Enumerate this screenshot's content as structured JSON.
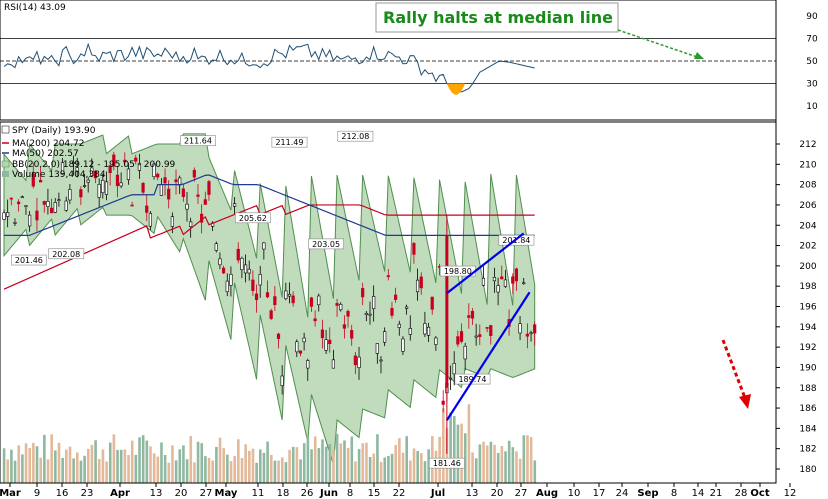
{
  "colors": {
    "up": "#000000",
    "down": "#c8001e",
    "band_fill": "#b5d6b0",
    "band_edge": "#4f8f4f",
    "ma200": "#c8001e",
    "ma50": "#1f3a93",
    "volume_up": "#8fb8a0",
    "volume_down": "#e3b99a",
    "channel": "#0000ee",
    "arrow": "#e00000",
    "annotation": "#1a8a1a",
    "rsi_line": "#1f4f73",
    "rsi_fill": "#ffa500"
  },
  "annotation": {
    "text": "Rally halts at median line"
  },
  "rsi_panel": {
    "label": "RSI(14) 43.09",
    "tick_labels": [
      "90",
      "70",
      "50",
      "30",
      "10"
    ]
  },
  "price_panel": {
    "legend": {
      "symbol": "SPY (Daily) 193.90",
      "ma200": "MA(200) 204.72",
      "ma50": "MA(50) 202.57",
      "bb": "BB(20,2.0) 189.12 - 195.05 - 200.99",
      "volume": "Volume 139,404,384"
    },
    "tick_labels": [
      "212",
      "210",
      "208",
      "206",
      "204",
      "202",
      "200",
      "198",
      "196",
      "194",
      "192",
      "190",
      "188",
      "186",
      "184",
      "182",
      "180"
    ]
  },
  "x_axis": {
    "labels": [
      {
        "t": "Mar",
        "month": true
      },
      {
        "t": "9"
      },
      {
        "t": "16"
      },
      {
        "t": "23"
      },
      {
        "t": "Apr",
        "month": true
      },
      {
        "t": "13"
      },
      {
        "t": "20"
      },
      {
        "t": "27"
      },
      {
        "t": "May",
        "month": true
      },
      {
        "t": "11"
      },
      {
        "t": "18"
      },
      {
        "t": "26"
      },
      {
        "t": "Jun",
        "month": true
      },
      {
        "t": "8"
      },
      {
        "t": "15"
      },
      {
        "t": "22"
      },
      {
        "t": "Jul",
        "month": true
      },
      {
        "t": "13"
      },
      {
        "t": "20"
      },
      {
        "t": "27"
      },
      {
        "t": "Aug",
        "month": true
      },
      {
        "t": "10"
      },
      {
        "t": "17"
      },
      {
        "t": "24"
      },
      {
        "t": "Sep",
        "month": true
      },
      {
        "t": "8"
      },
      {
        "t": "14"
      },
      {
        "t": "21"
      },
      {
        "t": "28"
      },
      {
        "t": "Oct",
        "month": true
      },
      {
        "t": "12"
      }
    ]
  },
  "chart_data": {
    "type": "candlestick",
    "symbol": "SPY",
    "price_range": [
      180,
      213
    ],
    "rsi_range": [
      0,
      100
    ],
    "rsi_guides": [
      70,
      50,
      30
    ],
    "price_labels": [
      {
        "v": "211.64",
        "date": "May 19",
        "pos": "above"
      },
      {
        "v": "211.49",
        "date": "Jun 23",
        "pos": "above"
      },
      {
        "v": "212.08",
        "date": "Jul 20",
        "pos": "above"
      },
      {
        "v": "201.46",
        "date": "Mar 11",
        "pos": "below"
      },
      {
        "v": "202.08",
        "date": "Mar 26",
        "pos": "below"
      },
      {
        "v": "205.62",
        "date": "Jun 9",
        "pos": "below"
      },
      {
        "v": "203.05",
        "date": "Jul 8",
        "pos": "below"
      },
      {
        "v": "198.80",
        "date": "Aug 27",
        "pos": "above"
      },
      {
        "v": "201.84",
        "date": "Sep 17",
        "pos": "above"
      },
      {
        "v": "189.74",
        "date": "Sep 1",
        "pos": "below"
      },
      {
        "v": "181.46",
        "date": "Aug 24",
        "pos": "below"
      }
    ],
    "channel_upper": [
      {
        "d": "Aug 24",
        "p": 197.3
      },
      {
        "d": "Sep 21",
        "p": 203.2
      }
    ],
    "channel_lower": [
      {
        "d": "Aug 24",
        "p": 184.8
      },
      {
        "d": "Sep 23",
        "p": 197.4
      }
    ],
    "bb_upper": [
      [
        211,
        208
      ],
      [
        212,
        209
      ],
      [
        212,
        212
      ],
      [
        212,
        213
      ],
      [
        211,
        213
      ],
      [
        211,
        212
      ],
      [
        212,
        212
      ],
      [
        213,
        213
      ],
      [
        211,
        205
      ],
      [
        210,
        200
      ],
      [
        209,
        196
      ],
      [
        209,
        194
      ],
      [
        210,
        196
      ],
      [
        210,
        198
      ],
      [
        210,
        199
      ],
      [
        210,
        199
      ],
      [
        210,
        198
      ],
      [
        210,
        197
      ],
      [
        210,
        196
      ],
      [
        211,
        196
      ],
      [
        211,
        196
      ]
    ],
    "bb_lower": [
      [
        201,
        204
      ],
      [
        202,
        205
      ],
      [
        203,
        206
      ],
      [
        204,
        206
      ],
      [
        205,
        205
      ],
      [
        205,
        203
      ],
      [
        205,
        201
      ],
      [
        203,
        196
      ],
      [
        201,
        192
      ],
      [
        199,
        188
      ],
      [
        196,
        184
      ],
      [
        193,
        182
      ],
      [
        188,
        180
      ],
      [
        185,
        183
      ],
      [
        186,
        185
      ],
      [
        188,
        186
      ],
      [
        189,
        187
      ],
      [
        190,
        188
      ],
      [
        190,
        189
      ],
      [
        190,
        189
      ],
      [
        189,
        190
      ]
    ],
    "ma200": [
      [
        197,
        198
      ],
      [
        198,
        199
      ],
      [
        199,
        200
      ],
      [
        200,
        201
      ],
      [
        201,
        202
      ],
      [
        202,
        203
      ],
      [
        203,
        204
      ],
      [
        203,
        205
      ],
      [
        204,
        205
      ],
      [
        205,
        206
      ],
      [
        205,
        206
      ],
      [
        205,
        206
      ],
      [
        206,
        206
      ],
      [
        206,
        206
      ],
      [
        206,
        205
      ],
      [
        205,
        205
      ],
      [
        205,
        205
      ],
      [
        205,
        205
      ],
      [
        205,
        205
      ],
      [
        205,
        205
      ],
      [
        205,
        205
      ]
    ],
    "ma50": [
      [
        203,
        203
      ],
      [
        203,
        204
      ],
      [
        204,
        205
      ],
      [
        205,
        206
      ],
      [
        206,
        207
      ],
      [
        207,
        207
      ],
      [
        208,
        208
      ],
      [
        208,
        209
      ],
      [
        209,
        208
      ],
      [
        208,
        208
      ],
      [
        208,
        207
      ],
      [
        207,
        206
      ],
      [
        206,
        205
      ],
      [
        205,
        204
      ],
      [
        204,
        203
      ],
      [
        203,
        203
      ],
      [
        203,
        203
      ],
      [
        203,
        203
      ],
      [
        203,
        203
      ],
      [
        203,
        203
      ],
      [
        203,
        203
      ]
    ],
    "rsi": [
      [
        50,
        52
      ],
      [
        48,
        55
      ],
      [
        45,
        58
      ],
      [
        50,
        60
      ],
      [
        52,
        55
      ],
      [
        55,
        56
      ],
      [
        58,
        55
      ],
      [
        55,
        58
      ],
      [
        52,
        57
      ],
      [
        50,
        55
      ],
      [
        55,
        52
      ],
      [
        50,
        52
      ],
      [
        48,
        58
      ],
      [
        56,
        60
      ],
      [
        60,
        54
      ],
      [
        55,
        50
      ],
      [
        50,
        55
      ],
      [
        58,
        56
      ],
      [
        55,
        52
      ],
      [
        52,
        40
      ],
      [
        40,
        28
      ]
    ],
    "rsi_tail": [
      [
        28,
        22
      ],
      [
        22,
        26
      ],
      [
        26,
        40
      ],
      [
        40,
        45
      ],
      [
        45,
        50
      ],
      [
        50,
        49
      ],
      [
        49,
        47
      ],
      [
        47,
        45
      ],
      [
        45,
        43.09
      ]
    ],
    "series": [
      {
        "name": "SPY (Daily)",
        "last": 193.9
      },
      {
        "name": "MA(200)",
        "last": 204.72
      },
      {
        "name": "MA(50)",
        "last": 202.57
      },
      {
        "name": "BB(20,2.0)",
        "lower": 189.12,
        "mid": 195.05,
        "upper": 200.99
      },
      {
        "name": "Volume",
        "last": 139404384
      }
    ],
    "volume_mean_shares_m": 95
  }
}
